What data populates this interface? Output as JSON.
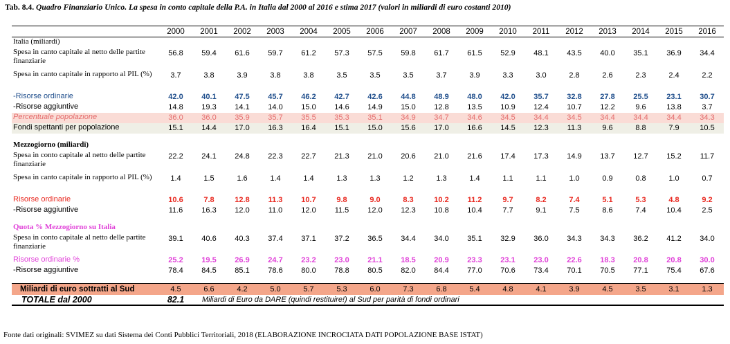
{
  "caption": {
    "prefix": "Tab. 8.4. ",
    "text": "Quadro Finanziario Unico. La spesa in conto capitale della P.A. in Italia dal 2000 al 2016 e stima 2017 (valori in miliardi di euro costanti 2010)"
  },
  "years": [
    "2000",
    "2001",
    "2002",
    "2003",
    "2004",
    "2005",
    "2006",
    "2007",
    "2008",
    "2009",
    "2010",
    "2011",
    "2012",
    "2013",
    "2014",
    "2015",
    "2016"
  ],
  "rows": [
    {
      "type": "label",
      "cls": "r1",
      "label": "Italia (miliardi)",
      "serif": true,
      "values": []
    },
    {
      "type": "data",
      "cls": "r2",
      "label": "Spesa in canto capitale al netto delle partite finanziarie",
      "serif": true,
      "values": [
        "56.8",
        "59.4",
        "61.6",
        "59.7",
        "61.2",
        "57.3",
        "57.5",
        "59.8",
        "61.7",
        "61.5",
        "52.9",
        "48.1",
        "43.5",
        "40.0",
        "35.1",
        "36.9",
        "34.4"
      ]
    },
    {
      "type": "data",
      "cls": "r2",
      "label": "Spesa in canto capitale in rapporto al PIL (%)",
      "serif": true,
      "values": [
        "3.7",
        "3.8",
        "3.9",
        "3.8",
        "3.8",
        "3.5",
        "3.5",
        "3.5",
        "3.7",
        "3.9",
        "3.3",
        "3.0",
        "2.8",
        "2.6",
        "2.3",
        "2.4",
        "2.2"
      ]
    },
    {
      "type": "data",
      "cls": "r1 bold blue",
      "label": "-Risorse ordinarie",
      "values": [
        "42.0",
        "40.1",
        "47.5",
        "45.7",
        "46.2",
        "42.7",
        "42.6",
        "44.8",
        "48.9",
        "48.0",
        "42.0",
        "35.7",
        "32.8",
        "27.8",
        "25.5",
        "23.1",
        "30.7"
      ]
    },
    {
      "type": "data",
      "cls": "r1",
      "label": "-Risorse aggiuntive",
      "values": [
        "14.8",
        "19.3",
        "14.1",
        "14.0",
        "15.0",
        "14.6",
        "14.9",
        "15.0",
        "12.8",
        "13.5",
        "10.9",
        "12.4",
        "10.7",
        "12.2",
        "9.6",
        "13.8",
        "3.7"
      ]
    },
    {
      "type": "data",
      "cls": "r1 pink",
      "label": "Percentuale popolazione",
      "values": [
        "36.0",
        "36.0",
        "35.9",
        "35.7",
        "35.5",
        "35.3",
        "35.1",
        "34.9",
        "34.7",
        "34.6",
        "34.5",
        "34.4",
        "34.5",
        "34.4",
        "34.4",
        "34.4",
        "34.3"
      ]
    },
    {
      "type": "data",
      "cls": "r1 grey",
      "label": "Fondi spettanti per popolazione",
      "values": [
        "15.1",
        "14.4",
        "17.0",
        "16.3",
        "16.4",
        "15.1",
        "15.0",
        "15.6",
        "17.0",
        "16.6",
        "14.5",
        "12.3",
        "11.3",
        "9.6",
        "8.8",
        "7.9",
        "10.5"
      ]
    },
    {
      "type": "blank",
      "cls": "blank",
      "label": "",
      "values": []
    },
    {
      "type": "label",
      "cls": "r1 sec",
      "label": "Mezzogiorno (miliardi)",
      "values": []
    },
    {
      "type": "data",
      "cls": "r2",
      "label": "Spesa in conto capitale al netto delle partite finanziarie",
      "serif": true,
      "values": [
        "22.2",
        "24.1",
        "24.8",
        "22.3",
        "22.7",
        "21.3",
        "21.0",
        "20.6",
        "21.0",
        "21.6",
        "17.4",
        "17.3",
        "14.9",
        "13.7",
        "12.7",
        "15.2",
        "11.7"
      ]
    },
    {
      "type": "data",
      "cls": "r2",
      "label": "Spesa in canto capitale in rapporto al PIL (%)",
      "serif": true,
      "values": [
        "1.4",
        "1.5",
        "1.6",
        "1.4",
        "1.4",
        "1.3",
        "1.3",
        "1.2",
        "1.3",
        "1.4",
        "1.1",
        "1.1",
        "1.0",
        "0.9",
        "0.8",
        "1.0",
        "0.7"
      ]
    },
    {
      "type": "data",
      "cls": "r1 bold red",
      "label": "Risorse ordinarie",
      "values": [
        "10.6",
        "7.8",
        "12.8",
        "11.3",
        "10.7",
        "9.8",
        "9.0",
        "8.3",
        "10.2",
        "11.2",
        "9.7",
        "8.2",
        "7.4",
        "5.1",
        "5.3",
        "4.8",
        "9.2"
      ]
    },
    {
      "type": "data",
      "cls": "r1",
      "label": "-Risorse aggiuntive",
      "values": [
        "11.6",
        "16.3",
        "12.0",
        "11.0",
        "12.0",
        "11.5",
        "12.0",
        "12.3",
        "10.8",
        "10.4",
        "7.7",
        "9.1",
        "7.5",
        "8.6",
        "7.4",
        "10.4",
        "2.5"
      ]
    },
    {
      "type": "blank",
      "cls": "blank",
      "label": "",
      "values": []
    },
    {
      "type": "label",
      "cls": "r1 sec mag",
      "label": "Quota % Mezzogiorno su Italia",
      "values": []
    },
    {
      "type": "data",
      "cls": "r2",
      "label": "Spesa in conto capitale al netto delle partite finanziarie",
      "serif": true,
      "values": [
        "39.1",
        "40.6",
        "40.3",
        "37.4",
        "37.1",
        "37.2",
        "36.5",
        "34.4",
        "34.0",
        "35.1",
        "32.9",
        "36.0",
        "34.3",
        "34.3",
        "36.2",
        "41.2",
        "34.0"
      ]
    },
    {
      "type": "data",
      "cls": "r1 bold magenta",
      "label": "Risorse ordinarie  %",
      "values": [
        "25.2",
        "19.5",
        "26.9",
        "24.7",
        "23.2",
        "23.0",
        "21.1",
        "18.5",
        "20.9",
        "23.3",
        "23.1",
        "23.0",
        "22.6",
        "18.3",
        "20.8",
        "20.8",
        "30.0"
      ]
    },
    {
      "type": "data",
      "cls": "r1",
      "label": "-Risorse aggiuntive",
      "values": [
        "78.4",
        "84.5",
        "85.1",
        "78.6",
        "80.0",
        "78.8",
        "80.5",
        "82.0",
        "84.4",
        "77.0",
        "70.6",
        "73.4",
        "70.1",
        "70.5",
        "77.1",
        "75.4",
        "67.6"
      ]
    },
    {
      "type": "blank",
      "cls": "blank",
      "label": "",
      "values": []
    }
  ],
  "orange_row": {
    "label": "Miliardi di euro sottratti al Sud",
    "values": [
      "4.5",
      "6.6",
      "4.2",
      "5.0",
      "5.7",
      "5.3",
      "6.0",
      "7.3",
      "6.8",
      "5.4",
      "4.8",
      "4.1",
      "3.9",
      "4.5",
      "3.5",
      "3.1",
      "1.3"
    ]
  },
  "total_row": {
    "label": "TOTALE  dal 2000",
    "value": "82.1",
    "note": "Miliardi di Euro  da DARE (quindi restituire!) al Sud per parità di fondi ordinari"
  },
  "source": "Fonte dati originali:  SVIMEZ su dati Sistema dei Conti Pubblici Territoriali, 2018 (ELABORAZIONE INCROCIATA DATI POPOLAZIONE BASE ISTAT)",
  "colors": {
    "blue": "#1f4e8c",
    "red": "#e8251c",
    "magenta": "#e040d8",
    "pink_fill": "#fadcd6",
    "grey_fill": "#efefe6",
    "orange_fill": "#f4a68a"
  }
}
